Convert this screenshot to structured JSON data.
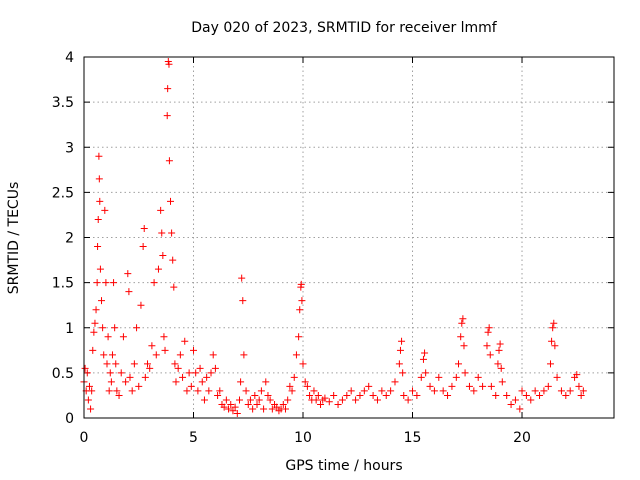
{
  "chart_data": {
    "type": "scatter",
    "title": "Day 020 of 2023, SRMTID for receiver lmmf",
    "xlabel": "GPS time / hours",
    "ylabel": "SRMTID / TECUs",
    "xlim": [
      0,
      24.2
    ],
    "ylim": [
      0,
      4
    ],
    "grid": true,
    "marker": "+",
    "series_color": "#ff0000",
    "xticks": [
      0,
      5,
      10,
      15,
      20
    ],
    "xtick_labels": [
      "0",
      "5",
      "10",
      "15",
      "20"
    ],
    "yticks": [
      0,
      0.5,
      1,
      1.5,
      2,
      2.5,
      3,
      3.5,
      4
    ],
    "ytick_labels": [
      "0",
      "0.5",
      "1",
      "1.5",
      "2",
      "2.5",
      "3",
      "3.5",
      "4"
    ],
    "series": [
      {
        "name": "SRMTID",
        "points": [
          [
            0.0,
            0.4
          ],
          [
            0.05,
            0.55
          ],
          [
            0.1,
            0.3
          ],
          [
            0.15,
            0.5
          ],
          [
            0.2,
            0.2
          ],
          [
            0.25,
            0.35
          ],
          [
            0.3,
            0.1
          ],
          [
            0.35,
            0.3
          ],
          [
            0.4,
            0.75
          ],
          [
            0.45,
            0.95
          ],
          [
            0.5,
            1.05
          ],
          [
            0.55,
            1.2
          ],
          [
            0.6,
            1.5
          ],
          [
            0.62,
            1.9
          ],
          [
            0.65,
            2.2
          ],
          [
            0.68,
            2.9
          ],
          [
            0.7,
            2.65
          ],
          [
            0.72,
            2.4
          ],
          [
            0.75,
            1.65
          ],
          [
            0.8,
            1.3
          ],
          [
            0.85,
            1.0
          ],
          [
            0.9,
            0.7
          ],
          [
            0.95,
            2.3
          ],
          [
            1.0,
            1.5
          ],
          [
            1.05,
            0.6
          ],
          [
            1.1,
            0.9
          ],
          [
            1.15,
            0.3
          ],
          [
            1.2,
            0.5
          ],
          [
            1.25,
            0.4
          ],
          [
            1.3,
            0.7
          ],
          [
            1.35,
            1.5
          ],
          [
            1.4,
            1.0
          ],
          [
            1.45,
            0.6
          ],
          [
            1.5,
            0.3
          ],
          [
            1.6,
            0.25
          ],
          [
            1.7,
            0.5
          ],
          [
            1.8,
            0.9
          ],
          [
            1.9,
            0.4
          ],
          [
            2.0,
            1.6
          ],
          [
            2.05,
            1.4
          ],
          [
            2.1,
            0.45
          ],
          [
            2.2,
            0.3
          ],
          [
            2.3,
            0.6
          ],
          [
            2.4,
            1.0
          ],
          [
            2.5,
            0.35
          ],
          [
            2.6,
            1.25
          ],
          [
            2.7,
            1.9
          ],
          [
            2.75,
            2.1
          ],
          [
            2.8,
            0.45
          ],
          [
            2.9,
            0.6
          ],
          [
            3.0,
            0.55
          ],
          [
            3.1,
            0.8
          ],
          [
            3.2,
            1.5
          ],
          [
            3.3,
            0.7
          ],
          [
            3.4,
            1.65
          ],
          [
            3.5,
            2.3
          ],
          [
            3.55,
            2.05
          ],
          [
            3.6,
            1.8
          ],
          [
            3.65,
            0.9
          ],
          [
            3.7,
            0.75
          ],
          [
            3.8,
            3.35
          ],
          [
            3.82,
            3.65
          ],
          [
            3.85,
            3.95
          ],
          [
            3.88,
            3.92
          ],
          [
            3.9,
            2.85
          ],
          [
            3.95,
            2.4
          ],
          [
            4.0,
            2.05
          ],
          [
            4.05,
            1.75
          ],
          [
            4.1,
            1.45
          ],
          [
            4.15,
            0.6
          ],
          [
            4.2,
            0.4
          ],
          [
            4.3,
            0.55
          ],
          [
            4.4,
            0.7
          ],
          [
            4.5,
            0.45
          ],
          [
            4.6,
            0.85
          ],
          [
            4.7,
            0.3
          ],
          [
            4.8,
            0.5
          ],
          [
            4.9,
            0.35
          ],
          [
            5.0,
            0.75
          ],
          [
            5.1,
            0.5
          ],
          [
            5.2,
            0.3
          ],
          [
            5.3,
            0.55
          ],
          [
            5.4,
            0.4
          ],
          [
            5.5,
            0.2
          ],
          [
            5.6,
            0.45
          ],
          [
            5.7,
            0.3
          ],
          [
            5.8,
            0.5
          ],
          [
            5.9,
            0.7
          ],
          [
            6.0,
            0.55
          ],
          [
            6.1,
            0.25
          ],
          [
            6.2,
            0.3
          ],
          [
            6.3,
            0.15
          ],
          [
            6.4,
            0.12
          ],
          [
            6.5,
            0.2
          ],
          [
            6.6,
            0.1
          ],
          [
            6.7,
            0.15
          ],
          [
            6.8,
            0.08
          ],
          [
            6.9,
            0.12
          ],
          [
            7.0,
            0.05
          ],
          [
            7.1,
            0.2
          ],
          [
            7.15,
            0.4
          ],
          [
            7.2,
            1.55
          ],
          [
            7.25,
            1.3
          ],
          [
            7.3,
            0.7
          ],
          [
            7.4,
            0.3
          ],
          [
            7.5,
            0.15
          ],
          [
            7.6,
            0.2
          ],
          [
            7.7,
            0.1
          ],
          [
            7.8,
            0.25
          ],
          [
            7.9,
            0.15
          ],
          [
            8.0,
            0.2
          ],
          [
            8.1,
            0.3
          ],
          [
            8.2,
            0.1
          ],
          [
            8.3,
            0.4
          ],
          [
            8.4,
            0.25
          ],
          [
            8.5,
            0.2
          ],
          [
            8.6,
            0.1
          ],
          [
            8.7,
            0.15
          ],
          [
            8.8,
            0.12
          ],
          [
            8.9,
            0.08
          ],
          [
            9.0,
            0.1
          ],
          [
            9.1,
            0.15
          ],
          [
            9.2,
            0.1
          ],
          [
            9.3,
            0.2
          ],
          [
            9.4,
            0.35
          ],
          [
            9.5,
            0.3
          ],
          [
            9.6,
            0.45
          ],
          [
            9.7,
            0.7
          ],
          [
            9.8,
            0.9
          ],
          [
            9.85,
            1.2
          ],
          [
            9.9,
            1.45
          ],
          [
            9.92,
            1.48
          ],
          [
            9.95,
            1.3
          ],
          [
            10.0,
            0.6
          ],
          [
            10.1,
            0.4
          ],
          [
            10.2,
            0.35
          ],
          [
            10.3,
            0.25
          ],
          [
            10.4,
            0.2
          ],
          [
            10.5,
            0.3
          ],
          [
            10.6,
            0.2
          ],
          [
            10.7,
            0.25
          ],
          [
            10.8,
            0.15
          ],
          [
            10.9,
            0.2
          ],
          [
            11.0,
            0.22
          ],
          [
            11.2,
            0.18
          ],
          [
            11.4,
            0.25
          ],
          [
            11.6,
            0.15
          ],
          [
            11.8,
            0.2
          ],
          [
            12.0,
            0.25
          ],
          [
            12.2,
            0.3
          ],
          [
            12.4,
            0.2
          ],
          [
            12.6,
            0.25
          ],
          [
            12.8,
            0.3
          ],
          [
            13.0,
            0.35
          ],
          [
            13.2,
            0.25
          ],
          [
            13.4,
            0.2
          ],
          [
            13.6,
            0.3
          ],
          [
            13.8,
            0.25
          ],
          [
            14.0,
            0.3
          ],
          [
            14.2,
            0.4
          ],
          [
            14.4,
            0.6
          ],
          [
            14.45,
            0.75
          ],
          [
            14.5,
            0.85
          ],
          [
            14.55,
            0.5
          ],
          [
            14.6,
            0.25
          ],
          [
            14.8,
            0.2
          ],
          [
            15.0,
            0.3
          ],
          [
            15.2,
            0.25
          ],
          [
            15.4,
            0.45
          ],
          [
            15.5,
            0.65
          ],
          [
            15.55,
            0.72
          ],
          [
            15.6,
            0.5
          ],
          [
            15.8,
            0.35
          ],
          [
            16.0,
            0.3
          ],
          [
            16.2,
            0.45
          ],
          [
            16.4,
            0.3
          ],
          [
            16.6,
            0.25
          ],
          [
            16.8,
            0.35
          ],
          [
            17.0,
            0.45
          ],
          [
            17.1,
            0.6
          ],
          [
            17.2,
            0.9
          ],
          [
            17.25,
            1.05
          ],
          [
            17.3,
            1.1
          ],
          [
            17.35,
            0.8
          ],
          [
            17.4,
            0.5
          ],
          [
            17.6,
            0.35
          ],
          [
            17.8,
            0.3
          ],
          [
            18.0,
            0.45
          ],
          [
            18.2,
            0.35
          ],
          [
            18.4,
            0.8
          ],
          [
            18.45,
            0.95
          ],
          [
            18.5,
            1.0
          ],
          [
            18.55,
            0.7
          ],
          [
            18.6,
            0.35
          ],
          [
            18.8,
            0.25
          ],
          [
            18.9,
            0.6
          ],
          [
            18.95,
            0.75
          ],
          [
            19.0,
            0.82
          ],
          [
            19.05,
            0.55
          ],
          [
            19.1,
            0.4
          ],
          [
            19.3,
            0.25
          ],
          [
            19.5,
            0.15
          ],
          [
            19.7,
            0.2
          ],
          [
            19.9,
            0.1
          ],
          [
            20.0,
            0.3
          ],
          [
            20.2,
            0.25
          ],
          [
            20.4,
            0.2
          ],
          [
            20.6,
            0.3
          ],
          [
            20.8,
            0.25
          ],
          [
            21.0,
            0.3
          ],
          [
            21.2,
            0.35
          ],
          [
            21.3,
            0.6
          ],
          [
            21.35,
            0.85
          ],
          [
            21.4,
            1.0
          ],
          [
            21.45,
            1.05
          ],
          [
            21.5,
            0.8
          ],
          [
            21.6,
            0.45
          ],
          [
            21.8,
            0.3
          ],
          [
            22.0,
            0.25
          ],
          [
            22.2,
            0.3
          ],
          [
            22.4,
            0.45
          ],
          [
            22.5,
            0.48
          ],
          [
            22.6,
            0.35
          ],
          [
            22.7,
            0.25
          ],
          [
            22.8,
            0.3
          ]
        ]
      }
    ]
  }
}
